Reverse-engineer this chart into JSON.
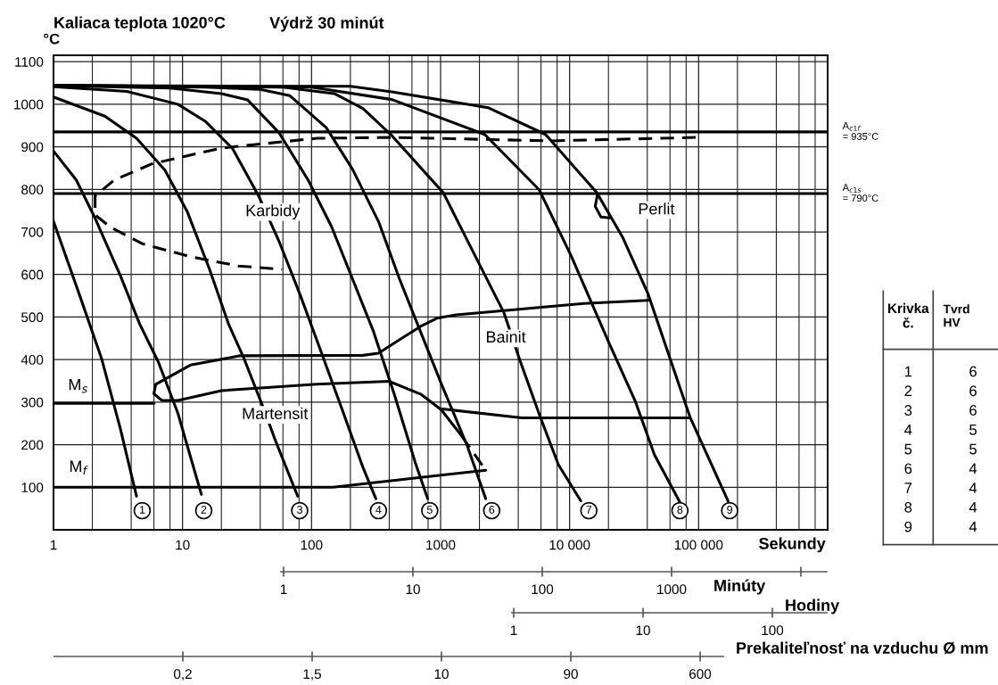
{
  "chart_data": [
    {
      "type": "line",
      "title": "Kaliaca teplota 1020°C",
      "subtitle": "Výdrž 30 minút",
      "ylabel": "°C",
      "xlabel": "Sekundy",
      "log": "x",
      "grid": true,
      "xlim": [
        1,
        1000000
      ],
      "xticks": [
        1,
        10,
        100,
        1000,
        {
          "value": 10000,
          "label": "10 000"
        },
        {
          "value": 100000,
          "label": "100 000"
        }
      ],
      "ylim": [
        0,
        1115
      ],
      "yticks": [
        100,
        200,
        300,
        400,
        500,
        600,
        700,
        800,
        900,
        1000,
        1100
      ],
      "ref_lines": [
        {
          "axis": "y",
          "value": 935,
          "label": "A$_{c1f}$\n= 935°C",
          "color": "#000000"
        },
        {
          "axis": "y",
          "value": 790,
          "label": "A$_{c1s}$\n= 790°C",
          "color": "#000000"
        }
      ],
      "series": [
        {
          "color": "#000000",
          "x": [
            1,
            1.59,
            2.36,
            3.3,
            4.4
          ],
          "values": [
            725,
            552,
            402,
            237,
            79
          ]
        },
        {
          "color": "#000000",
          "x": [
            1,
            1.5,
            2.1,
            3.3,
            4.65,
            6.5,
            9.2,
            14
          ],
          "values": [
            890,
            822,
            732,
            597,
            484,
            394,
            274,
            83
          ]
        },
        {
          "color": "#000000",
          "x": [
            1,
            2.5,
            4.4,
            7.3,
            10.9,
            16.2,
            22.7,
            30,
            42,
            52.9,
            78
          ],
          "values": [
            1017,
            972,
            920,
            845,
            747,
            612,
            484,
            402,
            289,
            207,
            79
          ]
        },
        {
          "color": "#000000",
          "x": [
            1,
            3.7,
            9.2,
            15,
            24.4,
            38.8,
            56.5,
            81.6,
            119,
            173,
            250,
            315
          ],
          "values": [
            1041,
            1030,
            1000,
            960,
            896,
            785,
            675,
            552,
            417,
            282,
            147,
            73
          ]
        },
        {
          "color": "#000000",
          "x": [
            1,
            8,
            20,
            32,
            56,
            94,
            143,
            208,
            302,
            437,
            635,
            795
          ],
          "values": [
            1044,
            1038,
            1025,
            1010,
            933,
            822,
            712,
            589,
            466,
            319,
            159,
            73
          ]
        },
        {
          "color": "#000000",
          "x": [
            1,
            15,
            40,
            68,
            130,
            208,
            331,
            481,
            698,
            1014,
            1615,
            2240
          ],
          "values": [
            1044,
            1040,
            1035,
            1020,
            945,
            847,
            724,
            589,
            466,
            343,
            196,
            73
          ]
        },
        {
          "color": "#000000",
          "x": [
            1,
            60,
            150,
            250,
            420,
            1050,
            1960,
            3100,
            4120,
            5810,
            8190,
            12200
          ],
          "values": [
            1044,
            1040,
            1025,
            990,
            926,
            792,
            629,
            510,
            398,
            272,
            153,
            68
          ]
        },
        {
          "color": "#000000",
          "x": [
            1,
            100,
            420,
            2200,
            5810,
            10300,
            20400,
            32300,
            45500,
            71800
          ],
          "values": [
            1044,
            1040,
            1011,
            929,
            799,
            643,
            436,
            302,
            176,
            64
          ]
        },
        {
          "color": "#000000",
          "x": [
            1,
            200,
            420,
            2330,
            6510,
            16250,
            25700,
            40600,
            85700,
            169000
          ],
          "values": [
            1044,
            1042,
            1029,
            992,
            929,
            792,
            688,
            554,
            265,
            68
          ]
        },
        {
          "color": "#000000",
          "line_style": "dashed",
          "x": [
            95000,
            7300,
            420,
            110,
            20,
            5.8,
            2.96,
            2.1,
            2.1,
            2.8,
            4.9,
            11.5,
            27,
            59
          ],
          "values": [
            922,
            914,
            922,
            920,
            897,
            860,
            822,
            785,
            740,
            710,
            672,
            642,
            620,
            612
          ]
        },
        {
          "color": "#000000",
          "x": [
            1,
            6.0
          ],
          "values": [
            297,
            297
          ]
        },
        {
          "color": "#000000",
          "x": [
            6.0,
            6.2,
            11.5,
            28,
            250,
            330,
            500,
            700,
            935,
            1320,
            3100,
            12900,
            40500
          ],
          "values": [
            320,
            342,
            387,
            409,
            410,
            415,
            450,
            478,
            497,
            505,
            515,
            532,
            539
          ]
        },
        {
          "color": "#000000",
          "x": [
            6.0,
            6.9,
            9.2,
            20,
            110,
            398,
            700,
            1014,
            1462
          ],
          "values": [
            320,
            304,
            304,
            327,
            342,
            349,
            319,
            282,
            220
          ]
        },
        {
          "color": "#000000",
          "line_style": "dashed",
          "x": [
            1462,
            2240
          ],
          "values": [
            220,
            140
          ]
        },
        {
          "color": "#000000",
          "x": [
            1,
            147,
            2240
          ],
          "values": [
            100,
            100,
            140
          ]
        },
        {
          "color": "#000000",
          "x": [
            1030,
            4270,
            85000
          ],
          "values": [
            284,
            263,
            263
          ]
        },
        {
          "color": "#000000",
          "x": [
            16500,
            15800,
            17500,
            20400
          ],
          "values": [
            790,
            760,
            735,
            733
          ]
        }
      ],
      "annotations": [
        {
          "text": "1",
          "x": 4.87,
          "y": 45
        },
        {
          "text": "2",
          "x": 14.6,
          "y": 45
        },
        {
          "text": "3",
          "x": 80.9,
          "y": 45
        },
        {
          "text": "4",
          "x": 330,
          "y": 45
        },
        {
          "text": "5",
          "x": 824,
          "y": 45
        },
        {
          "text": "6",
          "x": 2490,
          "y": 45
        },
        {
          "text": "7",
          "x": 14100,
          "y": 45
        },
        {
          "text": "8",
          "x": 71600,
          "y": 45
        },
        {
          "text": "9",
          "x": 174000,
          "y": 45
        },
        "Karbidy",
        "Perlit",
        "Bainit",
        "Martensit",
        "M$_{s}$",
        "M$_{f}$",
        "1",
        "10",
        "100",
        "1000",
        "Minúty",
        "1",
        "10",
        "100",
        "Hodiny",
        "0,2",
        "1,5",
        "10",
        "90",
        "600",
        "Prekaliteľnosť na vzduchu Ø mm",
        "Krivka\nč.",
        "Tvrd\nHV",
        "1",
        "6",
        "2",
        "6",
        "3",
        "6",
        "4",
        "5",
        "5",
        "5",
        "6",
        "4",
        "7",
        "4",
        "8",
        "4",
        "9",
        "4"
      ]
    }
  ]
}
